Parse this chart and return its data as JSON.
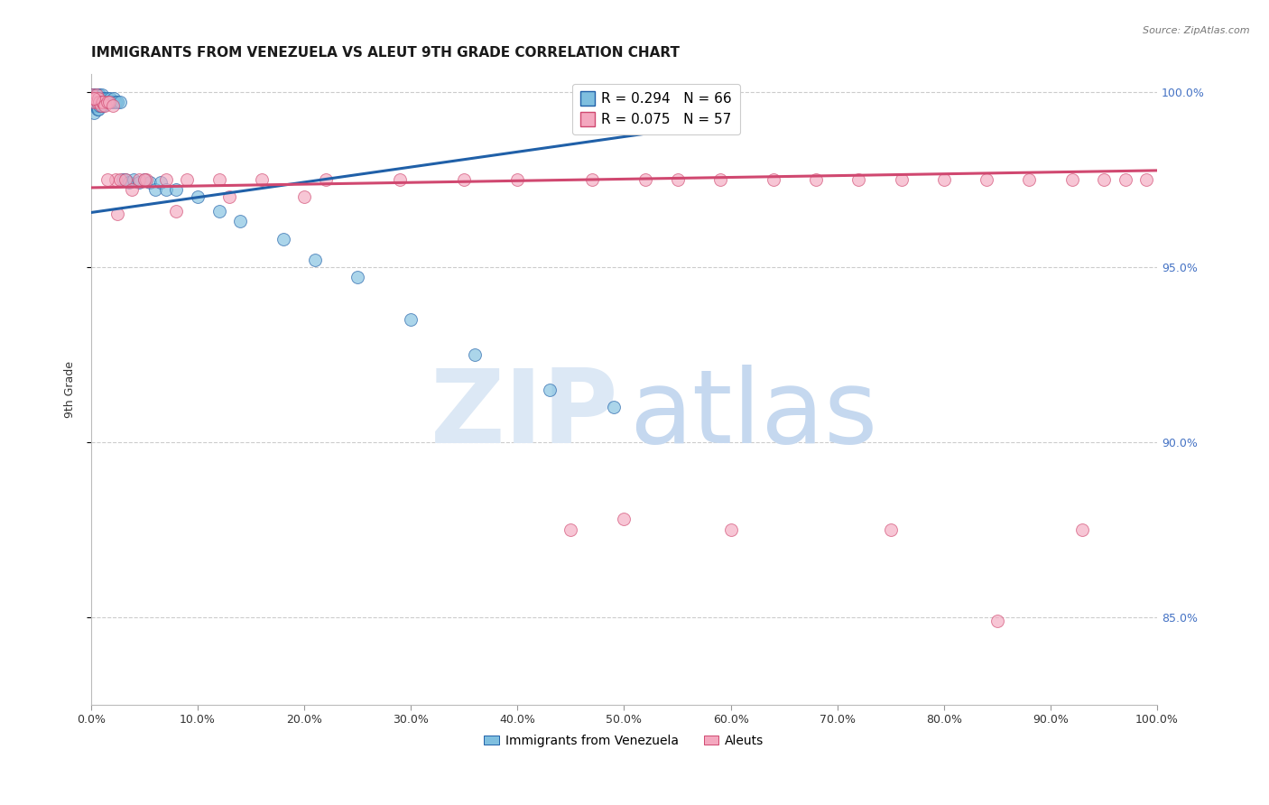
{
  "title": "IMMIGRANTS FROM VENEZUELA VS ALEUT 9TH GRADE CORRELATION CHART",
  "source": "Source: ZipAtlas.com",
  "ylabel": "9th Grade",
  "legend_blue": "R = 0.294   N = 66",
  "legend_pink": "R = 0.075   N = 57",
  "legend_label_blue": "Immigrants from Venezuela",
  "legend_label_pink": "Aleuts",
  "blue_color": "#7fbfdf",
  "pink_color": "#f4a8bf",
  "line_blue_color": "#2060a8",
  "line_pink_color": "#d04870",
  "background": "#ffffff",
  "grid_color": "#cccccc",
  "right_tick_color": "#4472c4",
  "xlim": [
    0.0,
    1.0
  ],
  "ylim": [
    0.825,
    1.005
  ],
  "ytick_positions": [
    0.85,
    0.9,
    0.95,
    1.0
  ],
  "xtick_positions": [
    0.0,
    0.1,
    0.2,
    0.3,
    0.4,
    0.5,
    0.6,
    0.7,
    0.8,
    0.9,
    1.0
  ],
  "blue_line_x0": 0.0,
  "blue_line_x1": 0.52,
  "blue_line_y0": 0.9655,
  "blue_line_y1": 0.988,
  "pink_line_x0": 0.0,
  "pink_line_x1": 1.0,
  "pink_line_y0": 0.9726,
  "pink_line_y1": 0.9775,
  "blue_x": [
    0.001,
    0.001,
    0.002,
    0.002,
    0.002,
    0.003,
    0.003,
    0.003,
    0.003,
    0.004,
    0.004,
    0.004,
    0.005,
    0.005,
    0.005,
    0.006,
    0.006,
    0.006,
    0.006,
    0.007,
    0.007,
    0.007,
    0.007,
    0.008,
    0.008,
    0.008,
    0.009,
    0.009,
    0.01,
    0.01,
    0.011,
    0.011,
    0.012,
    0.013,
    0.014,
    0.015,
    0.016,
    0.017,
    0.018,
    0.019,
    0.02,
    0.021,
    0.023,
    0.025,
    0.027,
    0.03,
    0.032,
    0.036,
    0.04,
    0.045,
    0.05,
    0.055,
    0.06,
    0.065,
    0.07,
    0.08,
    0.1,
    0.12,
    0.14,
    0.18,
    0.21,
    0.25,
    0.3,
    0.36,
    0.43,
    0.49
  ],
  "blue_y": [
    0.999,
    0.997,
    0.999,
    0.998,
    0.996,
    0.999,
    0.998,
    0.996,
    0.994,
    0.999,
    0.998,
    0.996,
    0.999,
    0.998,
    0.996,
    0.999,
    0.998,
    0.997,
    0.995,
    0.999,
    0.998,
    0.997,
    0.995,
    0.999,
    0.998,
    0.996,
    0.998,
    0.996,
    0.999,
    0.997,
    0.998,
    0.996,
    0.997,
    0.998,
    0.997,
    0.998,
    0.997,
    0.997,
    0.998,
    0.997,
    0.997,
    0.998,
    0.997,
    0.997,
    0.997,
    0.975,
    0.975,
    0.974,
    0.975,
    0.974,
    0.975,
    0.974,
    0.972,
    0.974,
    0.972,
    0.972,
    0.97,
    0.966,
    0.963,
    0.958,
    0.952,
    0.947,
    0.935,
    0.925,
    0.915,
    0.91
  ],
  "pink_x": [
    0.001,
    0.002,
    0.003,
    0.004,
    0.005,
    0.006,
    0.007,
    0.008,
    0.009,
    0.01,
    0.011,
    0.013,
    0.015,
    0.017,
    0.02,
    0.023,
    0.027,
    0.032,
    0.038,
    0.045,
    0.052,
    0.07,
    0.09,
    0.12,
    0.16,
    0.22,
    0.29,
    0.35,
    0.4,
    0.47,
    0.52,
    0.55,
    0.59,
    0.64,
    0.68,
    0.72,
    0.76,
    0.8,
    0.84,
    0.88,
    0.92,
    0.95,
    0.97,
    0.99,
    0.003,
    0.015,
    0.025,
    0.05,
    0.08,
    0.13,
    0.2,
    0.45,
    0.5,
    0.6,
    0.75,
    0.85,
    0.93
  ],
  "pink_y": [
    0.999,
    0.998,
    0.997,
    0.998,
    0.999,
    0.997,
    0.998,
    0.997,
    0.996,
    0.997,
    0.997,
    0.996,
    0.997,
    0.997,
    0.996,
    0.975,
    0.975,
    0.975,
    0.972,
    0.975,
    0.975,
    0.975,
    0.975,
    0.975,
    0.975,
    0.975,
    0.975,
    0.975,
    0.975,
    0.975,
    0.975,
    0.975,
    0.975,
    0.975,
    0.975,
    0.975,
    0.975,
    0.975,
    0.975,
    0.975,
    0.975,
    0.975,
    0.975,
    0.975,
    0.998,
    0.975,
    0.965,
    0.975,
    0.966,
    0.97,
    0.97,
    0.875,
    0.878,
    0.875,
    0.875,
    0.849,
    0.875
  ],
  "title_fontsize": 11,
  "tick_fontsize": 9,
  "marker_size": 100,
  "marker_alpha": 0.65,
  "watermark_color": "#dce8f5",
  "watermark_color2": "#c5d8ef"
}
